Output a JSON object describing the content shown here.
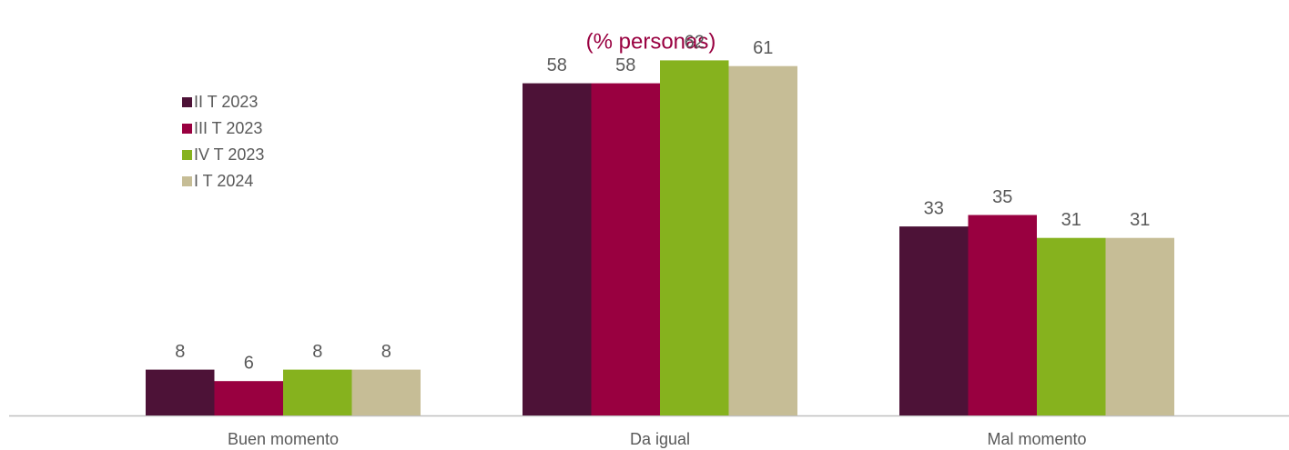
{
  "chart_data": {
    "type": "bar",
    "subtitle": "(% personas)",
    "categories": [
      "Buen momento",
      "Da igual",
      "Mal momento"
    ],
    "series": [
      {
        "name": "II T 2023",
        "color": "#4d1237",
        "values": [
          8,
          58,
          33
        ]
      },
      {
        "name": "III T 2023",
        "color": "#990040",
        "values": [
          6,
          58,
          35
        ]
      },
      {
        "name": "IV T 2023",
        "color": "#86b21e",
        "values": [
          8,
          62,
          31
        ]
      },
      {
        "name": "I T 2024",
        "color": "#c6bd96",
        "values": [
          8,
          61,
          31
        ]
      }
    ],
    "ylim": [
      0,
      70
    ],
    "legend": "upper left"
  }
}
